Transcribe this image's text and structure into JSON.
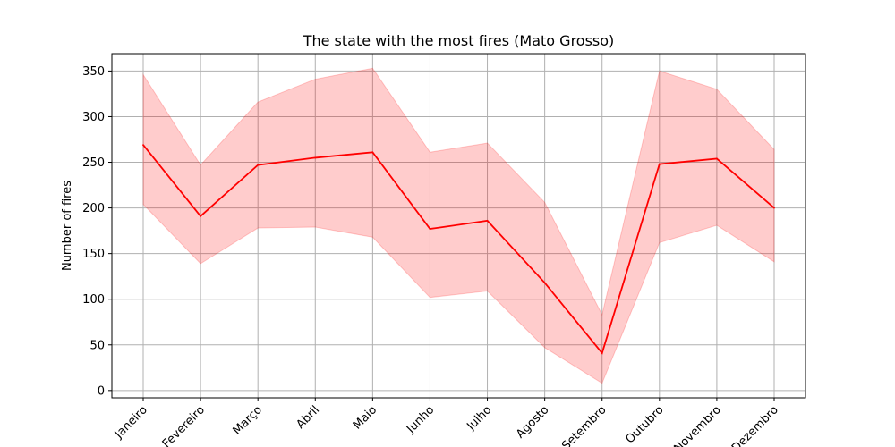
{
  "chart_data": {
    "type": "line",
    "title": "The state with the most fires (Mato Grosso)",
    "xlabel": "",
    "ylabel": "Number of fires",
    "categories": [
      "Janeiro",
      "Fevereiro",
      "Março",
      "Abril",
      "Maio",
      "Junho",
      "Julho",
      "Agosto",
      "Setembro",
      "Outubro",
      "Novembro",
      "Dezembro"
    ],
    "series": [
      {
        "values": [
          269,
          191,
          247,
          255,
          261,
          177,
          186,
          118,
          41,
          248,
          254,
          200
        ],
        "color": "#ff0000"
      }
    ],
    "band": {
      "lower": [
        204,
        139,
        178,
        179,
        168,
        102,
        109,
        47,
        8,
        162,
        181,
        141
      ],
      "upper": [
        346,
        247,
        316,
        341,
        353,
        261,
        271,
        206,
        83,
        350,
        330,
        264
      ],
      "color": "#ff0000",
      "opacity": 0.2
    },
    "ylim": [
      -8,
      369
    ],
    "yticks": [
      0,
      50,
      100,
      150,
      200,
      250,
      300,
      350
    ],
    "grid": true,
    "xtick_rotation": 45
  }
}
